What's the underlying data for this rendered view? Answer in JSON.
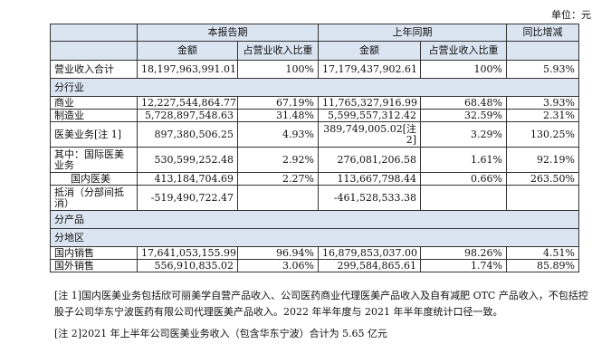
{
  "unit_label": "单位：元",
  "header": {
    "group_current": "本报告期",
    "group_prior": "上年同期",
    "group_yoy": "同比增减",
    "col_amount": "金额",
    "col_share": "占营业收入比重"
  },
  "total_row": {
    "label": "营业收入合计",
    "cur_amt": "18,197,963,991.01",
    "cur_pct": "100%",
    "pri_amt": "17,179,437,902.61",
    "pri_pct": "100%",
    "yoy": "5.93%"
  },
  "section_industry": "分行业",
  "industry_rows": [
    {
      "label": "商业",
      "cur_amt": "12,227,544,864.77",
      "cur_pct": "67.19%",
      "pri_amt": "11,765,327,916.99",
      "pri_pct": "68.48%",
      "yoy": "3.93%"
    },
    {
      "label": "制造业",
      "cur_amt": "5,728,897,548.63",
      "cur_pct": "31.48%",
      "pri_amt": "5,599,557,312.42",
      "pri_pct": "32.59%",
      "yoy": "2.31%"
    },
    {
      "label": "医美业务[注 1]",
      "cur_amt": "897,380,506.25",
      "cur_pct": "4.93%",
      "pri_amt": "389,749,005.02[注2]",
      "pri_pct": "3.29%",
      "yoy": "130.25%"
    },
    {
      "label": "其中：国际医美业务",
      "cur_amt": "530,599,252.48",
      "cur_pct": "2.92%",
      "pri_amt": "276,081,206.58",
      "pri_pct": "1.61%",
      "yoy": "92.19%"
    },
    {
      "label": "国内医美",
      "cur_amt": "413,184,704.69",
      "cur_pct": "2.27%",
      "pri_amt": "113,667,798.44",
      "pri_pct": "0.66%",
      "yoy": "263.50%"
    },
    {
      "label": "抵消（分部间抵消）",
      "cur_amt": "-519,490,722.47",
      "cur_pct": "",
      "pri_amt": "-461,528,533.38",
      "pri_pct": "",
      "yoy": ""
    }
  ],
  "section_product": "分产品",
  "section_region": "分地区",
  "region_rows": [
    {
      "label": "国内销售",
      "cur_amt": "17,641,053,155.99",
      "cur_pct": "96.94%",
      "pri_amt": "16,879,853,037.00",
      "pri_pct": "98.26%",
      "yoy": "4.51%"
    },
    {
      "label": "国外销售",
      "cur_amt": "556,910,835.02",
      "cur_pct": "3.06%",
      "pri_amt": "299,584,865.61",
      "pri_pct": "1.74%",
      "yoy": "85.89%"
    }
  ],
  "notes": {
    "note1": "[注 1]国内医美业务包括欣可丽美学自营产品收入、公司医药商业代理医美产品收入及自有减肥 OTC 产品收入，不包括控股子公司华东宁波医药有限公司代理医美产品收入。2022 年半年度与 2021 年半年度统计口径一致。",
    "note2": "[注 2]2021 年上半年公司医美业务收入（包含华东宁波）合计为 5.65 亿元"
  }
}
